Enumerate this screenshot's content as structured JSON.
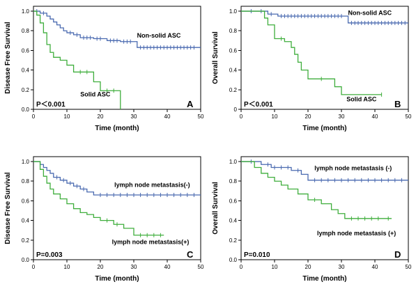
{
  "colors": {
    "blue": "#4a6ab0",
    "green": "#3fae3c",
    "axis": "#000000"
  },
  "chart_data": [
    {
      "type": "line",
      "subtype": "kaplan-meier",
      "panel_label": "A",
      "ylabel": "Disease Free Survival",
      "xlabel": "Time (month)",
      "xlim": [
        0,
        50
      ],
      "ylim": [
        0,
        1.05
      ],
      "xticks": [
        0,
        10,
        20,
        30,
        40,
        50
      ],
      "yticks": [
        0.0,
        0.2,
        0.4,
        0.6,
        0.8,
        1.0
      ],
      "ytick_labels": [
        "0.0",
        "0.2",
        "0.4",
        "0.6",
        "0.8",
        "1.0"
      ],
      "p_value": "P＜0.001",
      "series": [
        {
          "name": "Non-solid ASC",
          "color": "blue",
          "x": [
            0,
            2,
            4,
            5,
            6,
            7,
            8,
            9,
            10,
            12,
            14,
            18,
            22,
            26,
            31,
            50
          ],
          "y": [
            1.0,
            0.98,
            0.95,
            0.92,
            0.89,
            0.86,
            0.83,
            0.8,
            0.78,
            0.76,
            0.73,
            0.72,
            0.7,
            0.69,
            0.63,
            0.63
          ],
          "censor_x": [
            1,
            3,
            11,
            13,
            15,
            16,
            17,
            19,
            20,
            23,
            24,
            25,
            27,
            28,
            29,
            32,
            33,
            34,
            35,
            36,
            37,
            38,
            39,
            40,
            41,
            42,
            43,
            44,
            45,
            46,
            47,
            48
          ]
        },
        {
          "name": "Solid ASC",
          "color": "green",
          "x": [
            0,
            1,
            2,
            3,
            4,
            5,
            6,
            8,
            10,
            12,
            18,
            20,
            25,
            26
          ],
          "y": [
            1.0,
            0.96,
            0.88,
            0.78,
            0.66,
            0.58,
            0.53,
            0.5,
            0.45,
            0.38,
            0.28,
            0.19,
            0.19,
            0.0
          ],
          "censor_x": [
            14,
            16,
            22,
            24
          ],
          "end_x": 26
        }
      ],
      "annotations": [
        {
          "text": "Non-solid ASC",
          "x": 37.5,
          "y": 0.73
        },
        {
          "text": "Solid ASC",
          "x": 18.5,
          "y": 0.13
        }
      ]
    },
    {
      "type": "line",
      "subtype": "kaplan-meier",
      "panel_label": "B",
      "ylabel": "Overall Survival",
      "xlabel": "Time (month)",
      "xlim": [
        0,
        50
      ],
      "ylim": [
        0,
        1.05
      ],
      "xticks": [
        0,
        10,
        20,
        30,
        40,
        50
      ],
      "yticks": [
        0.0,
        0.2,
        0.4,
        0.6,
        0.8,
        1.0
      ],
      "ytick_labels": [
        "0",
        "0.2",
        "0.4",
        "0.6",
        "0.8",
        "1.0"
      ],
      "p_value": "P＜0.001",
      "series": [
        {
          "name": "Non-solid ASC",
          "color": "blue",
          "x": [
            0,
            8,
            11,
            32,
            50
          ],
          "y": [
            1.0,
            0.97,
            0.95,
            0.88,
            0.88
          ],
          "censor_x": [
            3,
            6,
            9,
            12,
            13,
            14,
            15,
            16,
            17,
            18,
            19,
            20,
            21,
            22,
            23,
            24,
            25,
            26,
            27,
            28,
            29,
            30,
            33,
            34,
            35,
            36,
            37,
            38,
            39,
            40,
            41,
            42,
            43,
            44,
            45,
            46,
            47,
            48,
            49
          ]
        },
        {
          "name": "Solid ASC",
          "color": "green",
          "x": [
            0,
            7,
            8,
            10,
            13,
            15,
            16,
            17,
            18,
            20,
            23,
            28,
            30,
            42
          ],
          "y": [
            1.0,
            0.93,
            0.86,
            0.72,
            0.69,
            0.63,
            0.56,
            0.48,
            0.4,
            0.31,
            0.31,
            0.23,
            0.15,
            0.15
          ],
          "censor_x": [
            12,
            24,
            42
          ],
          "end_x": 42
        }
      ],
      "annotations": [
        {
          "text": "Non-solid ASC",
          "x": 38.5,
          "y": 0.96
        },
        {
          "text": "Solid ASC",
          "x": 36,
          "y": 0.08
        }
      ]
    },
    {
      "type": "line",
      "subtype": "kaplan-meier",
      "panel_label": "C",
      "ylabel": "Disease Free Survival",
      "xlabel": "Time (month)",
      "xlim": [
        0,
        50
      ],
      "ylim": [
        0,
        1.05
      ],
      "xticks": [
        0,
        10,
        20,
        30,
        40,
        50
      ],
      "yticks": [
        0.0,
        0.2,
        0.4,
        0.6,
        0.8,
        1.0
      ],
      "ytick_labels": [
        "0.0",
        "0.2",
        "0.4",
        "0.6",
        "0.8",
        "1.0"
      ],
      "p_value": "P=0.003",
      "series": [
        {
          "name": "lymph node metastasis(-)",
          "color": "blue",
          "x": [
            0,
            2,
            3,
            4,
            5,
            6,
            8,
            10,
            12,
            14,
            16,
            18,
            50
          ],
          "y": [
            1.0,
            0.97,
            0.94,
            0.91,
            0.88,
            0.84,
            0.81,
            0.78,
            0.75,
            0.72,
            0.69,
            0.66,
            0.66
          ],
          "censor_x": [
            7,
            9,
            11,
            13,
            15,
            20,
            22,
            24,
            26,
            28,
            30,
            32,
            34,
            36,
            38,
            40,
            42,
            44,
            46,
            48
          ]
        },
        {
          "name": "lymph node metastasis(+)",
          "color": "green",
          "x": [
            0,
            2,
            3,
            4,
            5,
            6,
            8,
            10,
            12,
            14,
            16,
            18,
            20,
            24,
            27,
            30,
            39
          ],
          "y": [
            1.0,
            0.92,
            0.85,
            0.78,
            0.72,
            0.67,
            0.62,
            0.57,
            0.52,
            0.48,
            0.46,
            0.43,
            0.4,
            0.36,
            0.32,
            0.25,
            0.25
          ],
          "censor_x": [
            22,
            25,
            32,
            34,
            36,
            38
          ],
          "end_x": 39
        }
      ],
      "annotations": [
        {
          "text": "lymph node metastasis(-)",
          "x": 35.5,
          "y": 0.74
        },
        {
          "text": "lymph node metastasis(+)",
          "x": 35,
          "y": 0.16
        }
      ]
    },
    {
      "type": "line",
      "subtype": "kaplan-meier",
      "panel_label": "D",
      "ylabel": "Overall Survival",
      "xlabel": "Time (month)",
      "xlim": [
        0,
        50
      ],
      "ylim": [
        0,
        1.05
      ],
      "xticks": [
        0,
        10,
        20,
        30,
        40,
        50
      ],
      "yticks": [
        0.0,
        0.2,
        0.4,
        0.6,
        0.8,
        1.0
      ],
      "ytick_labels": [
        "0.0",
        "0.2",
        "0.4",
        "0.6",
        "0.8",
        "1.0"
      ],
      "p_value": "P=0.010",
      "series": [
        {
          "name": "lymph node metastasis (-)",
          "color": "blue",
          "x": [
            0,
            6,
            9,
            15,
            18,
            20,
            50
          ],
          "y": [
            1.0,
            0.97,
            0.94,
            0.91,
            0.87,
            0.81,
            0.81
          ],
          "censor_x": [
            3,
            8,
            10,
            12,
            14,
            17,
            22,
            24,
            26,
            28,
            30,
            32,
            34,
            36,
            38,
            40,
            42,
            44,
            46,
            48
          ]
        },
        {
          "name": "lymph node metastasis (+)",
          "color": "green",
          "x": [
            0,
            4,
            6,
            8,
            10,
            12,
            14,
            17,
            20,
            24,
            27,
            29,
            31,
            45
          ],
          "y": [
            1.0,
            0.94,
            0.88,
            0.84,
            0.8,
            0.76,
            0.72,
            0.67,
            0.61,
            0.57,
            0.51,
            0.47,
            0.42,
            0.42
          ],
          "censor_x": [
            22,
            33,
            35,
            37,
            39,
            41,
            44
          ],
          "end_x": 45
        }
      ],
      "annotations": [
        {
          "text": "lymph node metastasis (-)",
          "x": 33.5,
          "y": 0.91
        },
        {
          "text": "lymph node metastasis (+)",
          "x": 34.5,
          "y": 0.25
        }
      ]
    }
  ]
}
